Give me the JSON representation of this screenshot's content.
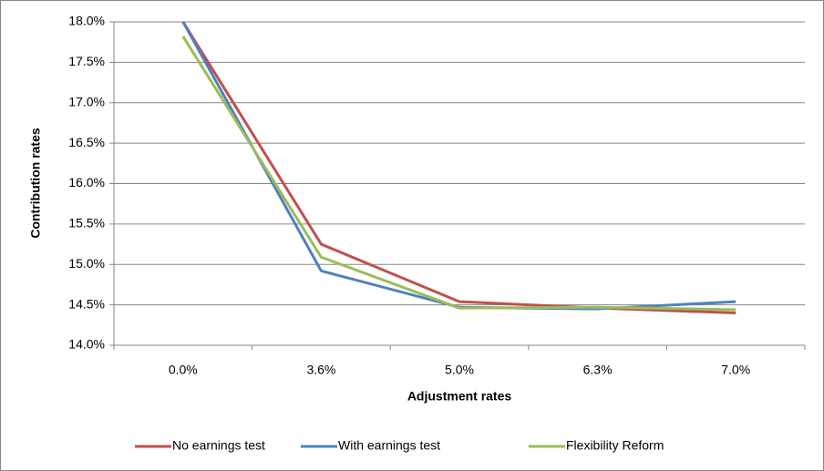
{
  "chart_data": {
    "type": "line",
    "xlabel": "Adjustment rates",
    "ylabel": "Contribution rates",
    "categories": [
      "0.0%",
      "3.6%",
      "5.0%",
      "6.3%",
      "7.0%"
    ],
    "series": [
      {
        "name": "No earnings test",
        "color": "#c0504d",
        "values": [
          18.0,
          15.25,
          14.54,
          14.46,
          14.4
        ]
      },
      {
        "name": "With earnings test",
        "color": "#4f81bd",
        "values": [
          18.0,
          14.92,
          14.47,
          14.45,
          14.54
        ]
      },
      {
        "name": "Flexibility Reform",
        "color": "#9bbb59",
        "values": [
          17.82,
          15.09,
          14.46,
          14.47,
          14.44
        ]
      }
    ],
    "ylim": [
      14,
      18
    ],
    "yticks": [
      {
        "value": 14,
        "label": "14.0%"
      },
      {
        "value": 14.5,
        "label": "14.5%"
      },
      {
        "value": 15,
        "label": "15.0%"
      },
      {
        "value": 15.5,
        "label": "15.5%"
      },
      {
        "value": 16,
        "label": "16.0%"
      },
      {
        "value": 16.5,
        "label": "16.5%"
      },
      {
        "value": 17,
        "label": "17.0%"
      },
      {
        "value": 17.5,
        "label": "17.5%"
      },
      {
        "value": 18,
        "label": "18.0%"
      }
    ],
    "grid": true,
    "legend": "bottom"
  }
}
